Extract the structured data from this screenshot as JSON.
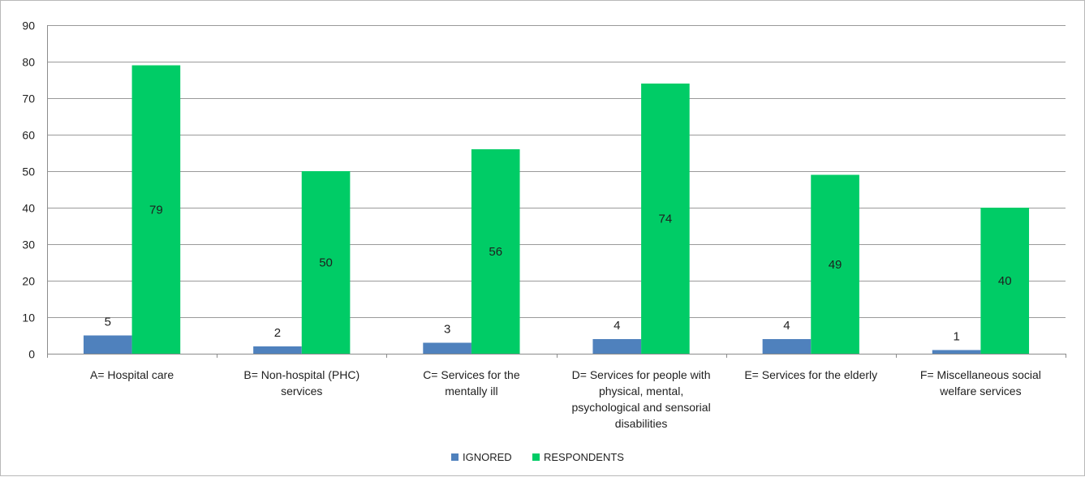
{
  "chart_data": {
    "type": "bar",
    "title": "",
    "xlabel": "",
    "ylabel": "",
    "ylim": [
      0,
      90
    ],
    "yticks": [
      0,
      10,
      20,
      30,
      40,
      50,
      60,
      70,
      80,
      90
    ],
    "grid": true,
    "legend_position": "bottom",
    "categories": [
      [
        "A= Hospital care"
      ],
      [
        "B= Non-hospital (PHC)",
        "services"
      ],
      [
        "C= Services for the",
        "mentally ill"
      ],
      [
        "D= Services for people with",
        "physical, mental,",
        "psychological and sensorial",
        "disabilities"
      ],
      [
        "E= Services for the elderly"
      ],
      [
        "F= Miscellaneous social",
        "welfare services"
      ]
    ],
    "series": [
      {
        "name": "IGNORED",
        "color": "#4f81bd",
        "values": [
          5,
          2,
          3,
          4,
          4,
          1
        ]
      },
      {
        "name": "RESPONDENTS",
        "color": "#00cc66",
        "values": [
          79,
          50,
          56,
          74,
          49,
          40
        ]
      }
    ]
  }
}
